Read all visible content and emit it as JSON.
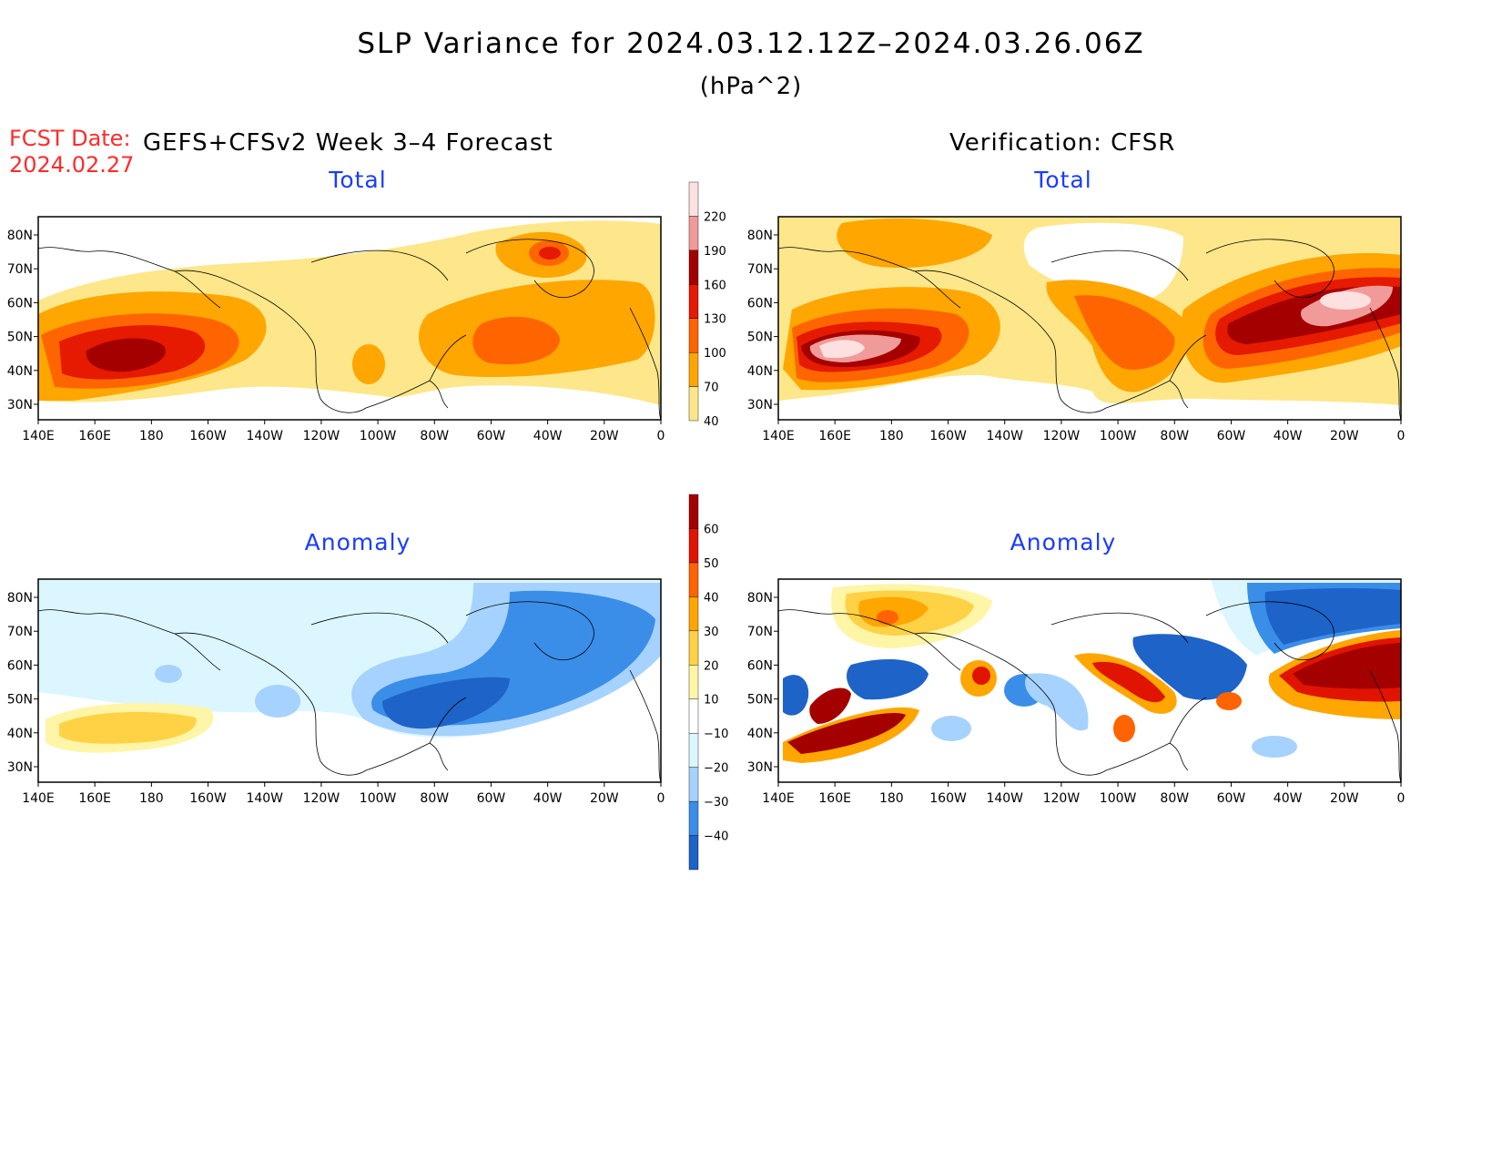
{
  "title": "SLP Variance for 2024.03.12.12Z–2024.03.26.06Z",
  "units": "(hPa^2)",
  "fcst_date": {
    "label": "FCST Date:",
    "value": "2024.02.27"
  },
  "left_header": "GEFS+CFSv2 Week 3–4 Forecast",
  "right_header": "Verification: CFSR",
  "panels": [
    {
      "title": "Total"
    },
    {
      "title": "Total"
    },
    {
      "title": "Anomaly"
    },
    {
      "title": "Anomaly"
    }
  ],
  "axes": {
    "lat_labels": [
      "30N",
      "40N",
      "50N",
      "60N",
      "70N",
      "80N"
    ],
    "lon_labels": [
      "140E",
      "160E",
      "180",
      "160W",
      "140W",
      "120W",
      "100W",
      "80W",
      "60W",
      "40W",
      "20W",
      "0"
    ]
  },
  "colorbars": {
    "total": {
      "labels": [
        "40",
        "70",
        "100",
        "130",
        "160",
        "190",
        "220"
      ],
      "colors": [
        "#fee78a",
        "#ffa600",
        "#fe6500",
        "#e51a00",
        "#a50000",
        "#f19a9a",
        "#fde0e0"
      ]
    },
    "anomaly": {
      "labels": [
        "−40",
        "−30",
        "−20",
        "−10",
        "10",
        "20",
        "30",
        "40",
        "50",
        "60"
      ],
      "colors": [
        "#1d63c8",
        "#3a8ee8",
        "#a6d2ff",
        "#dcf6ff",
        "#ffffff",
        "#fff5a6",
        "#ffd246",
        "#ffa600",
        "#ff6400",
        "#e01400",
        "#a50000"
      ]
    }
  },
  "colors": {
    "panel_title": "#1a3cff",
    "fcst_date": "#ff2b2b"
  }
}
